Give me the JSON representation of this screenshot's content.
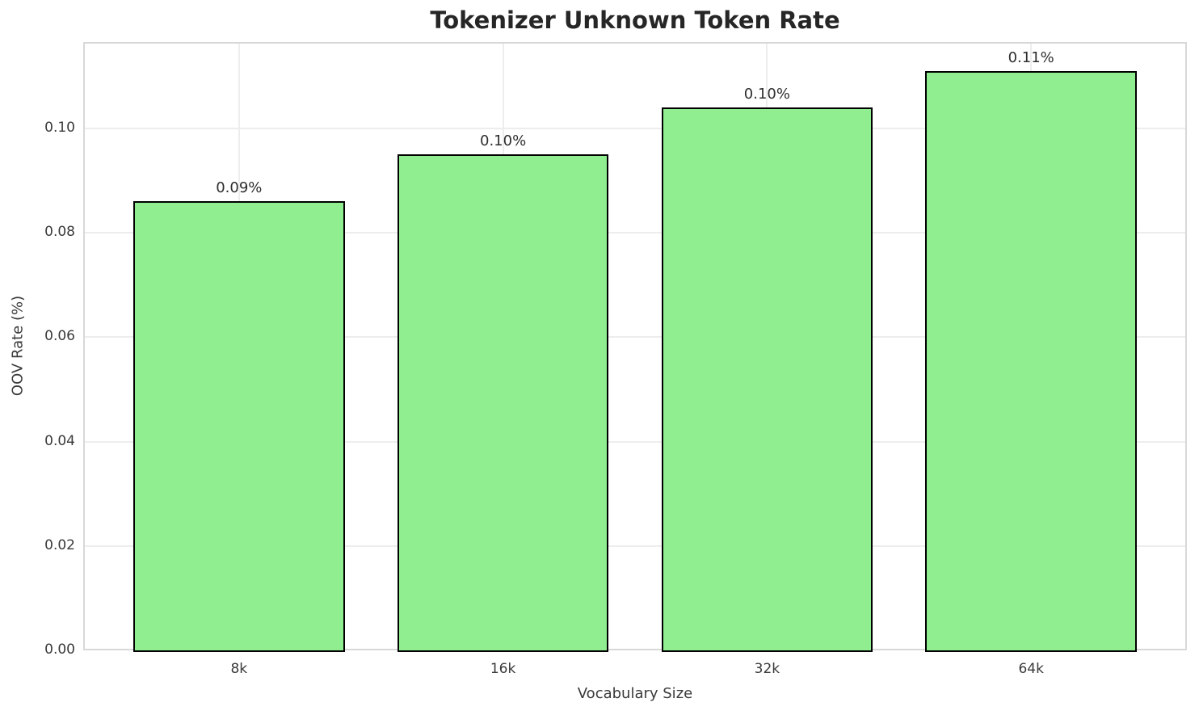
{
  "chart_data": {
    "type": "bar",
    "title": "Tokenizer Unknown Token Rate",
    "xlabel": "Vocabulary Size",
    "ylabel": "OOV Rate (%)",
    "categories": [
      "8k",
      "16k",
      "32k",
      "64k"
    ],
    "values": [
      0.086,
      0.095,
      0.104,
      0.111
    ],
    "bar_labels": [
      "0.09%",
      "0.10%",
      "0.10%",
      "0.11%"
    ],
    "yticks": {
      "values": [
        0.0,
        0.02,
        0.04,
        0.06,
        0.08,
        0.1
      ],
      "labels": [
        "0.00",
        "0.02",
        "0.04",
        "0.06",
        "0.08",
        "0.10"
      ]
    },
    "ylim": [
      0,
      0.11655
    ],
    "grid": true,
    "legend": "none",
    "colors": {
      "bar_fill": "#90EE90",
      "bar_edge": "#000000",
      "text": "#2e2e2e"
    }
  }
}
